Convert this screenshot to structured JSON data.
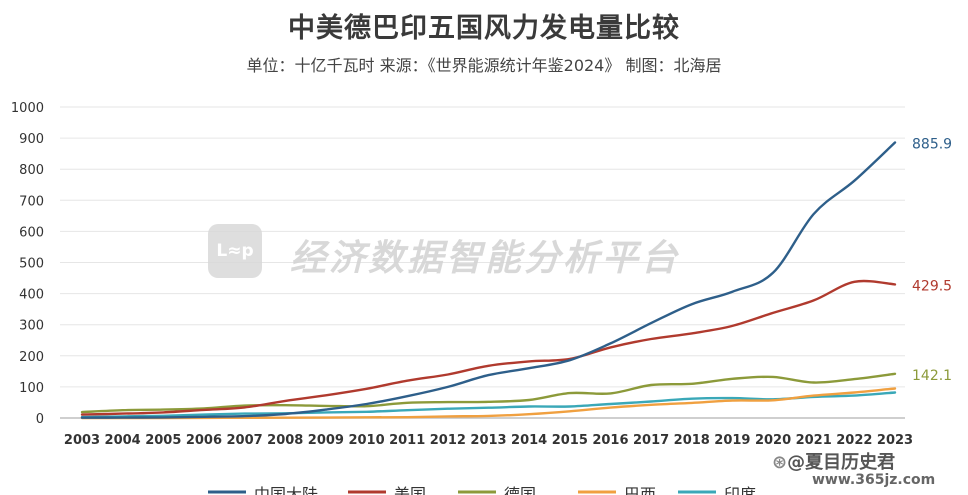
{
  "title": "中美德巴印五国风力发电量比较",
  "subtitle": "单位：十亿千瓦时  来源：《世界能源统计年鉴2024》 制图：北海居",
  "watermark": {
    "logo_text": "L≈p",
    "text": "经济数据智能分析平台"
  },
  "corner_mark": {
    "symbol": "⊛",
    "text": "@夏目历史君"
  },
  "site_mark": "www.365jz.com",
  "chart_data": {
    "type": "line",
    "title": "中美德巴印五国风力发电量比较",
    "xlabel": "",
    "ylabel": "",
    "ylim": [
      0,
      1000
    ],
    "yticks": [
      "0",
      "100",
      "200",
      "300",
      "400",
      "500",
      "600",
      "700",
      "800",
      "900",
      "1000"
    ],
    "grid": true,
    "legend_position": "bottom",
    "x": [
      "2003",
      "2004",
      "2005",
      "2006",
      "2007",
      "2008",
      "2009",
      "2010",
      "2011",
      "2012",
      "2013",
      "2014",
      "2015",
      "2016",
      "2017",
      "2018",
      "2019",
      "2020",
      "2021",
      "2022",
      "2023"
    ],
    "series": [
      {
        "name": "中国大陆",
        "color": "#2e5f8a",
        "values": [
          1,
          1.3,
          2,
          4,
          6,
          13,
          27,
          45,
          70,
          100,
          138,
          160,
          186,
          240,
          305,
          366,
          406,
          467,
          656,
          763,
          885.9
        ]
      },
      {
        "name": "美国",
        "color": "#b03a2e",
        "values": [
          11,
          14,
          18,
          26,
          34,
          55,
          73,
          94,
          120,
          140,
          168,
          182,
          190,
          227,
          254,
          272,
          296,
          338,
          378,
          438,
          429.5
        ]
      },
      {
        "name": "德国",
        "color": "#8c9a3a",
        "values": [
          19,
          25,
          27,
          31,
          40,
          41,
          39,
          38,
          49,
          51,
          52,
          58,
          80,
          79,
          106,
          110,
          126,
          132,
          114,
          125,
          142.1
        ]
      },
      {
        "name": "巴西",
        "color": "#f0a040",
        "values": [
          0.1,
          0.1,
          0.1,
          0.2,
          0.7,
          1,
          1.2,
          2.2,
          2.7,
          5,
          6.6,
          12.2,
          21.6,
          33.5,
          42.4,
          48.5,
          56,
          57,
          72,
          82,
          95
        ]
      },
      {
        "name": "印度",
        "color": "#3aa8b8",
        "values": [
          3,
          5,
          7,
          11,
          14,
          15,
          18,
          20,
          25,
          30,
          33,
          37,
          37,
          45,
          53,
          62,
          64,
          60,
          68,
          72,
          82
        ]
      }
    ],
    "end_labels": [
      {
        "series": "中国大陆",
        "text": "885.9",
        "color": "#2e5f8a"
      },
      {
        "series": "美国",
        "text": "429.5",
        "color": "#b03a2e"
      },
      {
        "series": "德国",
        "text": "142.1",
        "color": "#8c9a3a"
      }
    ]
  }
}
